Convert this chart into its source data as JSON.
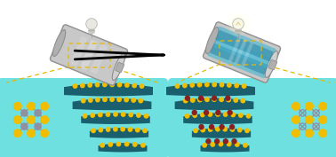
{
  "bg_color": "#ffffff",
  "cyan_bg": "#6ee0e0",
  "teal_layer": "#1a5f6e",
  "yellow_dot": "#f0be00",
  "gray_atom": "#9090a0",
  "dark_red_dot": "#8b2020",
  "arrow_color": "#222222",
  "dashed_box_color": "#e8b800",
  "figsize": [
    3.78,
    1.77
  ],
  "dpi": 100
}
